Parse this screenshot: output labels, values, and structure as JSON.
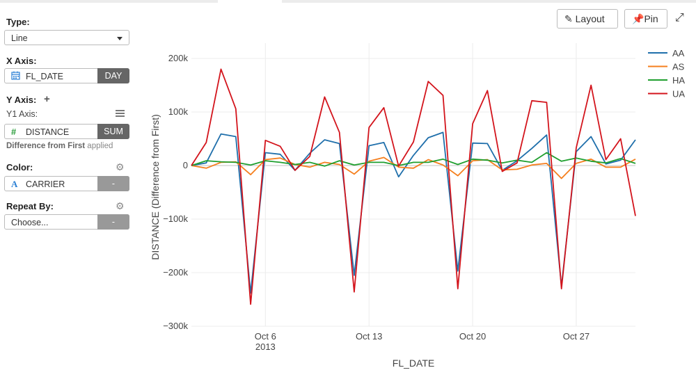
{
  "panel": {
    "type_label": "Type:",
    "type_value": "Line",
    "xaxis_label": "X Axis:",
    "xaxis_field": "FL_DATE",
    "xaxis_unit": "DAY",
    "yaxis_label": "Y Axis:",
    "y1_label": "Y1 Axis:",
    "y_field": "DISTANCE",
    "y_agg": "SUM",
    "note_bold": "Difference from First",
    "note_rest": " applied",
    "color_label": "Color:",
    "color_field": "CARRIER",
    "color_btn": "-",
    "repeat_label": "Repeat By:",
    "repeat_value": "Choose...",
    "repeat_btn": "-"
  },
  "toolbar": {
    "layout_label": "Layout",
    "pin_label": "Pin"
  },
  "chart_data": {
    "type": "line",
    "xlabel": "FL_DATE",
    "ylabel": "DISTANCE (Difference from First)",
    "ylim": [
      -300000,
      200000
    ],
    "xrange": [
      "2013-10-01",
      "2013-10-31"
    ],
    "x_ticks": [
      {
        "date": "2013-10-06",
        "label": "Oct 6",
        "sublabel": "2013"
      },
      {
        "date": "2013-10-13",
        "label": "Oct 13",
        "sublabel": ""
      },
      {
        "date": "2013-10-20",
        "label": "Oct 20",
        "sublabel": ""
      },
      {
        "date": "2013-10-27",
        "label": "Oct 27",
        "sublabel": ""
      }
    ],
    "y_ticks": [
      {
        "value": 200000,
        "label": "200k"
      },
      {
        "value": 100000,
        "label": "100k"
      },
      {
        "value": 0,
        "label": "0"
      },
      {
        "value": -100000,
        "label": "−100k"
      },
      {
        "value": -200000,
        "label": "−200k"
      },
      {
        "value": -300000,
        "label": "−300k"
      }
    ],
    "legend_position": "top-right",
    "grid": true,
    "x": [
      "2013-10-01",
      "2013-10-02",
      "2013-10-03",
      "2013-10-04",
      "2013-10-05",
      "2013-10-06",
      "2013-10-07",
      "2013-10-08",
      "2013-10-09",
      "2013-10-10",
      "2013-10-11",
      "2013-10-12",
      "2013-10-13",
      "2013-10-14",
      "2013-10-15",
      "2013-10-16",
      "2013-10-17",
      "2013-10-18",
      "2013-10-19",
      "2013-10-20",
      "2013-10-21",
      "2013-10-22",
      "2013-10-23",
      "2013-10-24",
      "2013-10-25",
      "2013-10-26",
      "2013-10-27",
      "2013-10-28",
      "2013-10-29",
      "2013-10-30",
      "2013-10-31"
    ],
    "series": [
      {
        "name": "AA",
        "color": "#1f6fab",
        "values": [
          0,
          5000,
          59000,
          54000,
          -238000,
          24000,
          21000,
          -9000,
          23000,
          48000,
          41000,
          -205000,
          37000,
          43000,
          -21000,
          19000,
          52000,
          62000,
          -197000,
          42000,
          41000,
          -9000,
          9000,
          32000,
          57000,
          -225000,
          26000,
          54000,
          3000,
          10000,
          48000
        ]
      },
      {
        "name": "AS",
        "color": "#f57f1e",
        "values": [
          0,
          -5000,
          6000,
          7000,
          -17000,
          11000,
          14000,
          2000,
          -3000,
          6000,
          2000,
          -16000,
          8000,
          15000,
          -3000,
          -5000,
          11000,
          1000,
          -19000,
          9000,
          11000,
          -8000,
          -7000,
          1000,
          4000,
          -24000,
          4000,
          12000,
          -3000,
          -3000,
          12000
        ]
      },
      {
        "name": "HA",
        "color": "#1f9f2f",
        "values": [
          0,
          9000,
          7000,
          6000,
          1000,
          9000,
          6000,
          2000,
          6000,
          -1000,
          9000,
          1000,
          6000,
          6000,
          0,
          6000,
          6000,
          12000,
          2000,
          12000,
          10000,
          5000,
          10000,
          6000,
          24000,
          8000,
          14000,
          8000,
          5000,
          13000,
          4000
        ]
      },
      {
        "name": "UA",
        "color": "#d3141c",
        "values": [
          0,
          43000,
          180000,
          106000,
          -259000,
          47000,
          36000,
          -9000,
          17000,
          128000,
          62000,
          -236000,
          71000,
          108000,
          -1000,
          44000,
          157000,
          131000,
          -230000,
          78000,
          140000,
          -11000,
          5000,
          121000,
          118000,
          -230000,
          33000,
          150000,
          11000,
          50000,
          -94000
        ]
      }
    ]
  }
}
